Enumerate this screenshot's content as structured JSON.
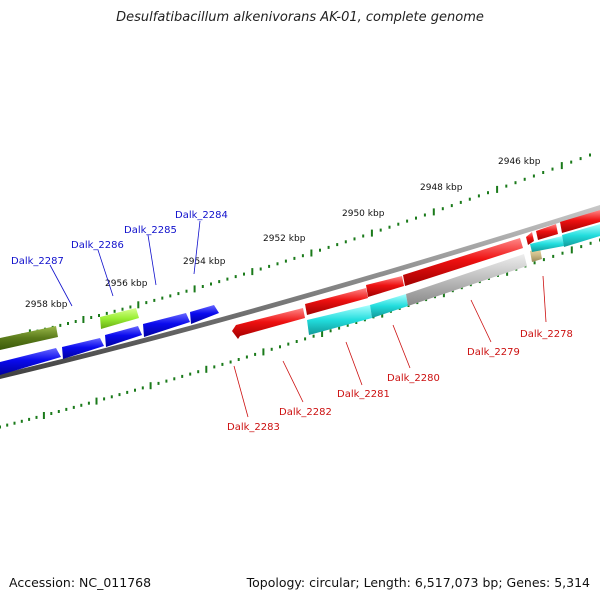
{
  "title": "Desulfatibacillum alkenivorans AK-01, complete genome",
  "footer": {
    "accession": "Accession: NC_011768",
    "topology": "Topology: circular; Length: 6,517,073 bp; Genes: 5,314"
  },
  "colors": {
    "backbone": "#808080",
    "tick": "#1a7a1a",
    "forward_label": "#1010cc",
    "reverse_label": "#cc1010"
  },
  "scale_labels": [
    "2946 kbp",
    "2948 kbp",
    "2950 kbp",
    "2952 kbp",
    "2954 kbp",
    "2956 kbp",
    "2958 kbp"
  ],
  "forward_genes": [
    {
      "label": "Dalk_2287",
      "color": "#5a7a1a"
    },
    {
      "label": "Dalk_2286",
      "color": "#99ee33"
    },
    {
      "label": "Dalk_2285",
      "color": "#0a0aee"
    },
    {
      "label": "Dalk_2284",
      "color": "#0a0aee"
    },
    {
      "label": "",
      "color": "#0a0aee"
    },
    {
      "label": "",
      "color": "#0a0aee"
    }
  ],
  "reverse_genes": [
    {
      "label": "Dalk_2283",
      "color": "#ee1111"
    },
    {
      "label": "Dalk_2282",
      "color": "#ee1111"
    },
    {
      "label": "Dalk_2281",
      "color": "#ee1111"
    },
    {
      "label": "Dalk_2280",
      "color": "#ee1111"
    },
    {
      "label": "Dalk_2279",
      "color": "#ee1111"
    },
    {
      "label": "Dalk_2278",
      "color": "#ee1111"
    }
  ],
  "cds_genes": [
    {
      "color": "#22dddd"
    },
    {
      "color": "#22dddd"
    },
    {
      "color": "#bbbbbb"
    },
    {
      "color": "#ccbb88"
    },
    {
      "color": "#22dddd"
    },
    {
      "color": "#22dddd"
    }
  ]
}
